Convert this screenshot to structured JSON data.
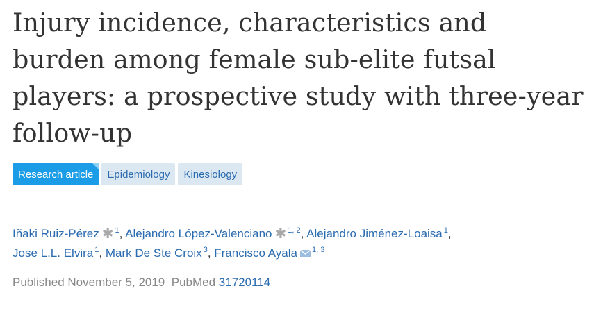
{
  "article": {
    "title": "Injury incidence, characteristics and burden among female sub-elite futsal players: a prospective study with three-year follow-up"
  },
  "tags": [
    {
      "label": "Research article"
    },
    {
      "label": "Epidemiology"
    },
    {
      "label": "Kinesiology"
    }
  ],
  "authors": [
    {
      "name": "Iñaki Ruiz-Pérez",
      "affiliations": "1",
      "marker": "star-icon"
    },
    {
      "name": "Alejandro López-Valenciano",
      "affiliations": "1, 2",
      "marker": "star-icon"
    },
    {
      "name": "Alejandro Jiménez-Loaisa",
      "affiliations": "1"
    },
    {
      "name": "Jose L.L. Elvira",
      "affiliations": "1"
    },
    {
      "name": "Mark De Ste Croix",
      "affiliations": "3"
    },
    {
      "name": "Francisco Ayala",
      "affiliations": "1, 3",
      "marker": "mail-icon"
    }
  ],
  "publication": {
    "published_label": "Published",
    "date": "November 5, 2019",
    "pubmed_label": "PubMed",
    "pubmed_id": "31720114"
  },
  "colors": {
    "link": "#2b6cb0",
    "primary_tag": "#1a9ce6",
    "secondary_tag": "#dbe7f1",
    "muted": "#888888"
  }
}
